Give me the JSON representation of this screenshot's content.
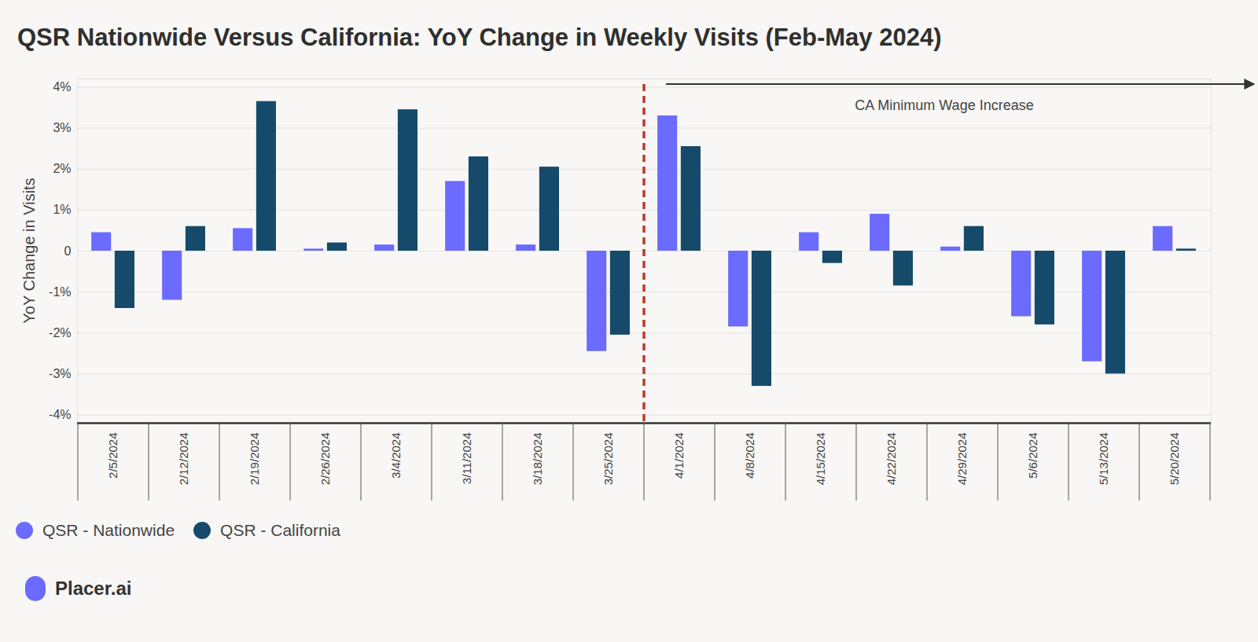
{
  "chart_data": {
    "type": "bar",
    "title": "QSR Nationwide Versus California: YoY Change in Weekly Visits (Feb-May 2024)",
    "y_label": "YoY Change in Visits",
    "categories": [
      "2/5/2024",
      "2/12/2024",
      "2/19/2024",
      "2/26/2024",
      "3/4/2024",
      "3/11/2024",
      "3/18/2024",
      "3/25/2024",
      "4/1/2024",
      "4/8/2024",
      "4/15/2024",
      "4/22/2024",
      "4/29/2024",
      "5/6/2024",
      "5/13/2024",
      "5/20/2024"
    ],
    "series": [
      {
        "name": "QSR - Nationwide",
        "color": "#6b6bff",
        "values": [
          0.45,
          -1.2,
          0.55,
          0.05,
          0.15,
          1.7,
          0.15,
          -2.45,
          3.3,
          -1.85,
          0.45,
          0.9,
          0.1,
          -1.6,
          -2.7,
          0.6
        ]
      },
      {
        "name": "QSR - California",
        "color": "#154a6a",
        "values": [
          -1.4,
          0.6,
          3.65,
          0.2,
          3.45,
          2.3,
          2.05,
          -2.05,
          2.55,
          -3.3,
          -0.3,
          -0.85,
          0.6,
          -1.8,
          -3.0,
          0.05
        ]
      }
    ],
    "ylim": [
      -4.2,
      4.2
    ],
    "yticks": [
      {
        "value": -4,
        "label": "-4%"
      },
      {
        "value": -3,
        "label": "-3%"
      },
      {
        "value": -2,
        "label": "-2%"
      },
      {
        "value": -1,
        "label": "-1%"
      },
      0,
      {
        "value": 1,
        "label": "1%"
      },
      {
        "value": 2,
        "label": "2%"
      },
      {
        "value": 3,
        "label": "3%"
      },
      {
        "value": 4,
        "label": "4%"
      }
    ],
    "grid": true,
    "legend": "bottom",
    "annotations": [
      {
        "text": "CA Minimum Wage Increase",
        "x": "4/1/2024"
      }
    ],
    "source": "Placer.ai"
  }
}
